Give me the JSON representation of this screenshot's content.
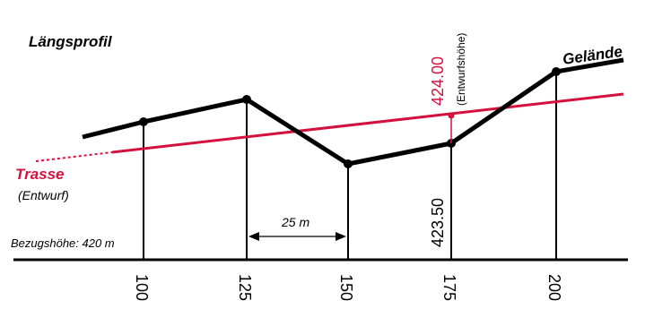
{
  "title": "Längsprofil",
  "terrain_label": "Gelände",
  "route_label": "Trasse",
  "route_sublabel": "(Entwurf)",
  "reference_label": "Bezugshöhe: 420 m",
  "spacing_label": "25 m",
  "design_value": "424.00",
  "design_caption": "(Entwurfshöhe)",
  "terrain_value": "423.50",
  "stations": [
    "100",
    "125",
    "150",
    "175",
    "200"
  ],
  "colors": {
    "route": "#d6103e",
    "terrain": "#000000"
  }
}
